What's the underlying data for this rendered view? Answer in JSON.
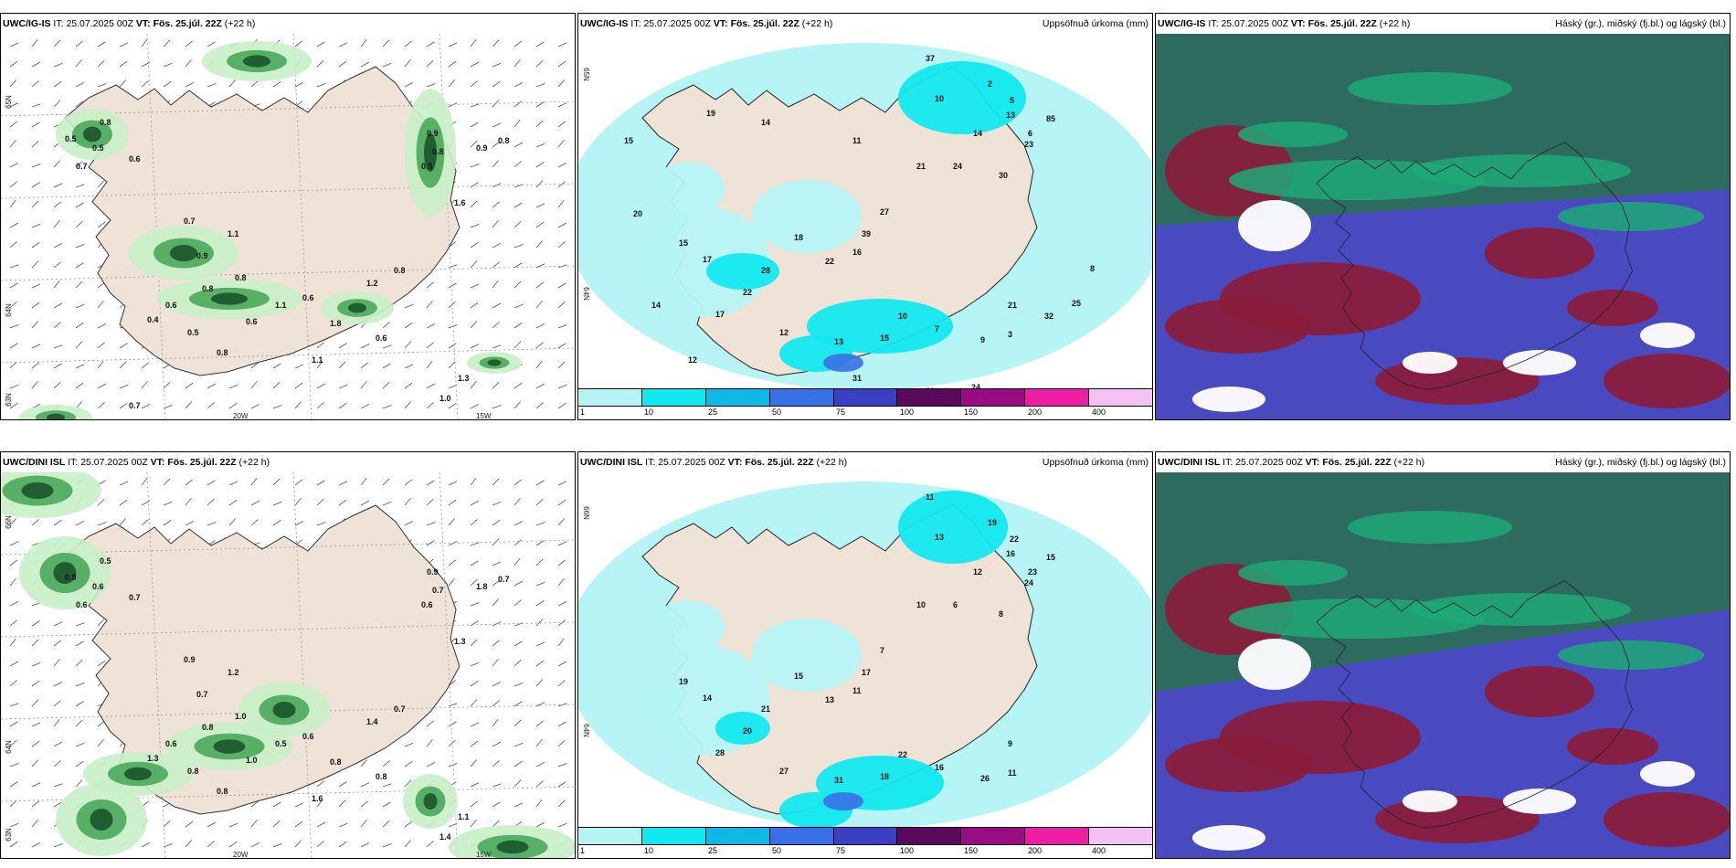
{
  "panels": [
    {
      "model": "UWC/IG-IS",
      "it_label": "IT:",
      "it_value": "25.07.2025 00Z",
      "vt_label": "VT:",
      "vt_value": "Fös. 25.júl. 22Z",
      "lead": "(+22 h)",
      "right_title": "",
      "lat_labels": [
        "65N",
        "64N",
        "63N"
      ],
      "lon_labels": [
        "20W",
        "15W"
      ],
      "values": [
        "0.5",
        "0.5",
        "0.7",
        "0.8",
        "0.6",
        "0.7",
        "1.1",
        "0.9",
        "0.8",
        "0.8",
        "0.6",
        "0.4",
        "0.5",
        "0.8",
        "0.6",
        "1.1",
        "0.6",
        "1.8",
        "1.2",
        "0.8",
        "0.5",
        "0.9",
        "0.8",
        "1.6",
        "0.9",
        "0.8",
        "0.6",
        "1.1",
        "1.3",
        "1.0",
        "0.7"
      ]
    },
    {
      "model": "UWC/IG-IS",
      "it_label": "IT:",
      "it_value": "25.07.2025 00Z",
      "vt_label": "VT:",
      "vt_value": "Fös. 25.júl. 22Z",
      "lead": "(+22 h)",
      "right_title": "Uppsöfnuð úrkoma (mm)",
      "lat_labels": [
        "65N",
        "64N"
      ],
      "lon_labels": [],
      "values": [
        "37",
        "10",
        "2",
        "5",
        "13",
        "6",
        "85",
        "23",
        "14",
        "21",
        "24",
        "30",
        "27",
        "39",
        "18",
        "22",
        "16",
        "28",
        "15",
        "17",
        "22",
        "17",
        "12",
        "13",
        "15",
        "10",
        "7",
        "9",
        "3",
        "21",
        "32",
        "25",
        "29",
        "24",
        "31",
        "18",
        "12",
        "14",
        "20",
        "15",
        "19",
        "14",
        "11",
        "8"
      ],
      "colorbar_labels": [
        "1",
        "10",
        "25",
        "50",
        "75",
        "100",
        "150",
        "200",
        "400"
      ],
      "colorbar_colors": [
        "#b6f4f6",
        "#13e8ef",
        "#11b8e6",
        "#3a70e6",
        "#3a3fc4",
        "#5a0a5a",
        "#990c84",
        "#ec1fa4",
        "#f4c2f2"
      ]
    },
    {
      "model": "UWC/IG-IS",
      "it_label": "IT:",
      "it_value": "25.07.2025 00Z",
      "vt_label": "VT:",
      "vt_value": "Fös. 25.júl. 22Z",
      "lead": "(+22 h)",
      "right_title": "Háský (gr.), miðský (fj.bl.) og lágský (bl.)",
      "lat_labels": [],
      "lon_labels": []
    },
    {
      "model": "UWC/DINI ISL",
      "it_label": "IT:",
      "it_value": "25.07.2025 00Z",
      "vt_label": "VT:",
      "vt_value": "Fös. 25.júl. 22Z",
      "lead": "(+22 h)",
      "right_title": "",
      "lat_labels": [
        "66N",
        "64N",
        "63N"
      ],
      "lon_labels": [
        "20W",
        "15W"
      ],
      "values": [
        "0.9",
        "0.6",
        "0.6",
        "0.5",
        "0.7",
        "0.9",
        "1.2",
        "0.7",
        "1.0",
        "0.8",
        "0.6",
        "1.3",
        "0.8",
        "0.8",
        "1.0",
        "0.5",
        "0.6",
        "0.8",
        "1.4",
        "0.7",
        "0.6",
        "0.9",
        "0.7",
        "1.3",
        "1.8",
        "0.7",
        "0.8",
        "1.6",
        "1.1",
        "1.4"
      ]
    },
    {
      "model": "UWC/DINI ISL",
      "it_label": "IT:",
      "it_value": "25.07.2025 00Z",
      "vt_label": "VT:",
      "vt_value": "Fös. 25.júl. 22Z",
      "lead": "(+22 h)",
      "right_title": "Uppsöfnuð úrkoma (mm)",
      "lat_labels": [
        "66N",
        "64N"
      ],
      "lon_labels": [],
      "values": [
        "11",
        "13",
        "19",
        "22",
        "16",
        "23",
        "15",
        "24",
        "12",
        "10",
        "6",
        "8",
        "7",
        "17",
        "15",
        "13",
        "11",
        "21",
        "19",
        "14",
        "20",
        "28",
        "27",
        "31",
        "18",
        "22",
        "16",
        "26",
        "11",
        "9"
      ],
      "colorbar_labels": [
        "1",
        "10",
        "25",
        "50",
        "75",
        "100",
        "150",
        "200",
        "400"
      ],
      "colorbar_colors": [
        "#b6f4f6",
        "#13e8ef",
        "#11b8e6",
        "#3a70e6",
        "#3a3fc4",
        "#5a0a5a",
        "#990c84",
        "#ec1fa4",
        "#f4c2f2"
      ]
    },
    {
      "model": "UWC/DINI ISL",
      "it_label": "IT:",
      "it_value": "25.07.2025 00Z",
      "vt_label": "VT:",
      "vt_value": "Fös. 25.júl. 22Z",
      "lead": "(+22 h)",
      "right_title": "Háský (gr.), miðský (fj.bl.) og lágský (bl.)",
      "lat_labels": [],
      "lon_labels": []
    }
  ],
  "colors": {
    "land": "#efe2d6",
    "precip_light": "#c8f0c8",
    "precip_mid": "#4aa85a",
    "precip_dark": "#1d5a2e",
    "accum_light": "#b6f4f6",
    "accum_mid": "#13e8ef",
    "cloud_high": "#2c6b5e",
    "cloud_mid": "#4a4ac0",
    "cloud_low": "#8a1c3a",
    "cloud_bright": "#1ea878"
  }
}
